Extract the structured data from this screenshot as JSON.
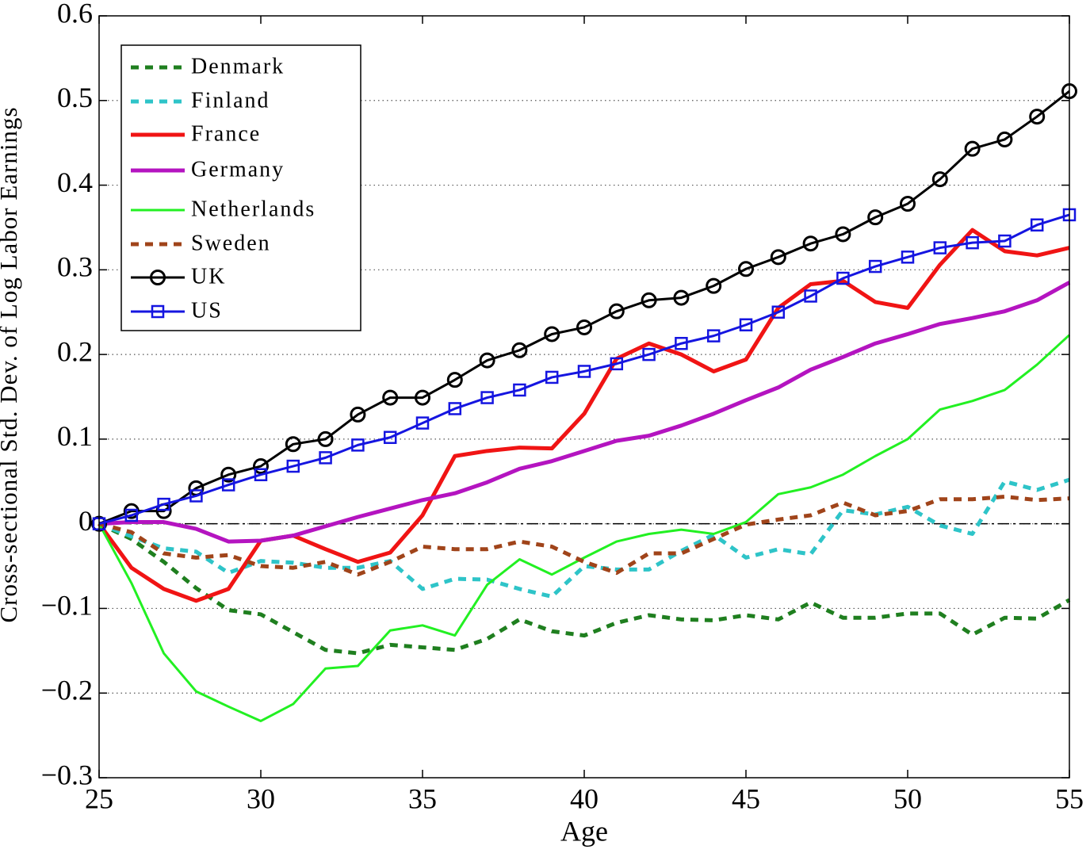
{
  "chart_data": {
    "type": "line",
    "xlabel": "Age",
    "ylabel": "Cross-sectional Std. Dev. of Log Labor Earnings",
    "x": [
      25,
      26,
      27,
      28,
      29,
      30,
      31,
      32,
      33,
      34,
      35,
      36,
      37,
      38,
      39,
      40,
      41,
      42,
      43,
      44,
      45,
      46,
      47,
      48,
      49,
      50,
      51,
      52,
      53,
      54,
      55
    ],
    "xlim": [
      25,
      55
    ],
    "xticks": [
      25,
      30,
      35,
      40,
      45,
      50,
      55
    ],
    "ylim": [
      -0.3,
      0.6
    ],
    "yticks": [
      {
        "value": -0.3,
        "label": "−0.3"
      },
      {
        "value": -0.2,
        "label": "−0.2"
      },
      {
        "value": -0.1,
        "label": "−0.1"
      },
      0,
      0.1,
      0.2,
      0.3,
      0.4,
      0.5,
      0.6
    ],
    "grid": true,
    "zero_line": true,
    "legend": "upper left",
    "series": [
      {
        "name": "Denmark",
        "color": "#1f7f1f",
        "linestyle": "dashed",
        "marker": "none",
        "values": [
          0,
          -0.018,
          -0.045,
          -0.076,
          -0.102,
          -0.107,
          -0.128,
          -0.149,
          -0.153,
          -0.143,
          -0.146,
          -0.149,
          -0.136,
          -0.113,
          -0.127,
          -0.132,
          -0.117,
          -0.108,
          -0.113,
          -0.114,
          -0.108,
          -0.113,
          -0.093,
          -0.111,
          -0.111,
          -0.106,
          -0.106,
          -0.131,
          -0.111,
          -0.112,
          -0.09
        ]
      },
      {
        "name": "Finland",
        "color": "#2ec4c8",
        "linestyle": "dashed",
        "marker": "none",
        "values": [
          0,
          -0.015,
          -0.029,
          -0.033,
          -0.058,
          -0.044,
          -0.046,
          -0.052,
          -0.052,
          -0.044,
          -0.077,
          -0.065,
          -0.066,
          -0.077,
          -0.086,
          -0.05,
          -0.054,
          -0.054,
          -0.032,
          -0.013,
          -0.04,
          -0.03,
          -0.036,
          0.016,
          0.011,
          0.02,
          -0.002,
          -0.012,
          0.05,
          0.04,
          0.052
        ]
      },
      {
        "name": "France",
        "color": "#f01414",
        "linestyle": "solid",
        "marker": "none",
        "values": [
          0,
          -0.052,
          -0.077,
          -0.091,
          -0.077,
          -0.02,
          -0.014,
          -0.03,
          -0.045,
          -0.034,
          0.01,
          0.08,
          0.086,
          0.09,
          0.089,
          0.13,
          0.195,
          0.213,
          0.2,
          0.18,
          0.194,
          0.255,
          0.283,
          0.287,
          0.262,
          0.255,
          0.306,
          0.347,
          0.322,
          0.317,
          0.326
        ]
      },
      {
        "name": "Germany",
        "color": "#b414c0",
        "linestyle": "solid",
        "marker": "none",
        "values": [
          0,
          0.002,
          0.002,
          -0.006,
          -0.021,
          -0.02,
          -0.014,
          -0.003,
          0.008,
          0.018,
          0.028,
          0.036,
          0.049,
          0.065,
          0.074,
          0.086,
          0.098,
          0.104,
          0.116,
          0.13,
          0.146,
          0.161,
          0.182,
          0.197,
          0.213,
          0.224,
          0.236,
          0.243,
          0.251,
          0.264,
          0.285
        ]
      },
      {
        "name": "Netherlands",
        "color": "#22f022",
        "linestyle": "thin",
        "marker": "none",
        "values": [
          0,
          -0.07,
          -0.153,
          -0.198,
          -0.216,
          -0.233,
          -0.213,
          -0.171,
          -0.168,
          -0.126,
          -0.12,
          -0.132,
          -0.072,
          -0.042,
          -0.06,
          -0.04,
          -0.021,
          -0.012,
          -0.007,
          -0.012,
          0.002,
          0.035,
          0.043,
          0.058,
          0.08,
          0.1,
          0.135,
          0.145,
          0.158,
          0.188,
          0.223
        ]
      },
      {
        "name": "Sweden",
        "color": "#a0441a",
        "linestyle": "dashed",
        "marker": "none",
        "values": [
          0,
          -0.01,
          -0.035,
          -0.04,
          -0.037,
          -0.05,
          -0.052,
          -0.045,
          -0.06,
          -0.045,
          -0.027,
          -0.03,
          -0.03,
          -0.021,
          -0.027,
          -0.045,
          -0.058,
          -0.035,
          -0.035,
          -0.018,
          -0.001,
          0.005,
          0.01,
          0.025,
          0.01,
          0.015,
          0.029,
          0.029,
          0.032,
          0.028,
          0.03
        ]
      },
      {
        "name": "UK",
        "color": "#000000",
        "linestyle": "thin",
        "marker": "circle",
        "values": [
          0,
          0.015,
          0.015,
          0.042,
          0.058,
          0.068,
          0.094,
          0.1,
          0.129,
          0.149,
          0.149,
          0.17,
          0.193,
          0.205,
          0.224,
          0.232,
          0.251,
          0.264,
          0.267,
          0.281,
          0.301,
          0.315,
          0.331,
          0.342,
          0.362,
          0.378,
          0.407,
          0.443,
          0.454,
          0.481,
          0.511
        ]
      },
      {
        "name": "US",
        "color": "#1515e0",
        "linestyle": "thin",
        "marker": "square",
        "values": [
          0,
          0.01,
          0.023,
          0.033,
          0.046,
          0.058,
          0.068,
          0.078,
          0.093,
          0.102,
          0.119,
          0.136,
          0.149,
          0.158,
          0.173,
          0.18,
          0.189,
          0.2,
          0.213,
          0.222,
          0.235,
          0.25,
          0.269,
          0.29,
          0.304,
          0.315,
          0.326,
          0.332,
          0.334,
          0.353,
          0.365
        ]
      }
    ]
  }
}
